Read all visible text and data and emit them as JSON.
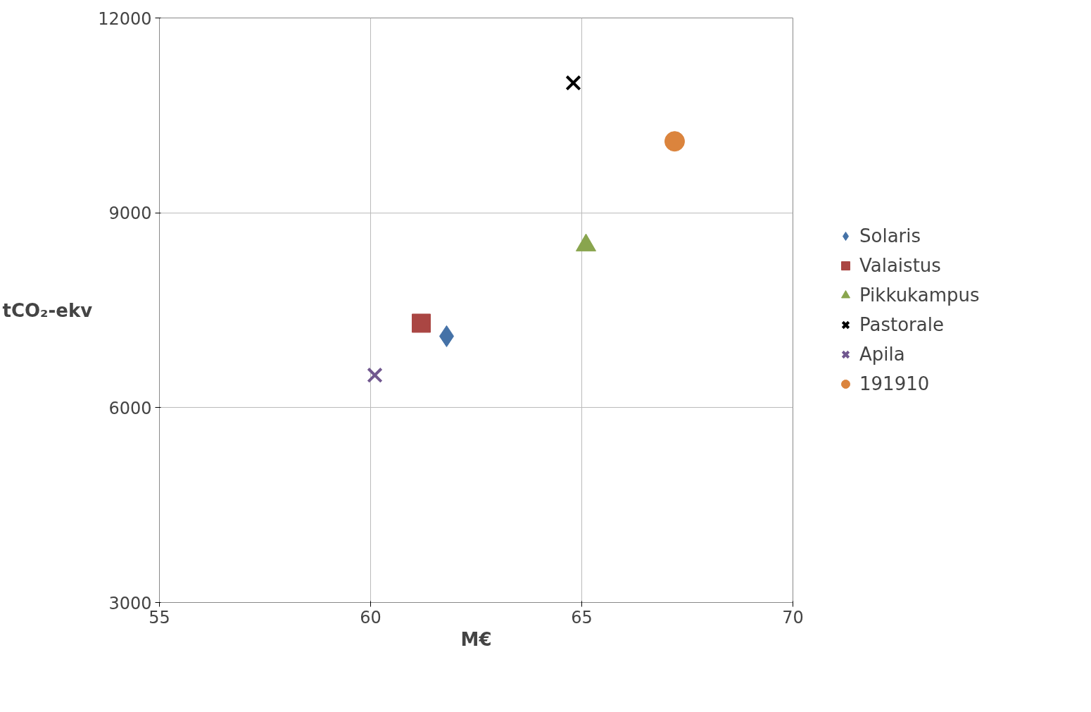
{
  "chart_data": {
    "type": "scatter",
    "xlabel": "M€",
    "ylabel": "tCO₂-ekv",
    "xlim": [
      55,
      70
    ],
    "xticks": [
      55,
      60,
      65,
      70
    ],
    "ylim": [
      3000,
      12000
    ],
    "yticks": [
      3000,
      6000,
      9000,
      12000
    ],
    "grid": true,
    "legend": "right",
    "series": [
      {
        "name": "Solaris",
        "color": "#4572a7",
        "marker": "diamond",
        "x": [
          61.8
        ],
        "values": [
          7100
        ]
      },
      {
        "name": "Valaistus",
        "color": "#aa4643",
        "marker": "square",
        "x": [
          61.2
        ],
        "values": [
          7300
        ]
      },
      {
        "name": "Pikkukampus",
        "color": "#89a54e",
        "marker": "triangle",
        "x": [
          65.1
        ],
        "values": [
          8500
        ]
      },
      {
        "name": "Pastorale",
        "color": "#000000",
        "marker": "cross",
        "x": [
          64.8
        ],
        "values": [
          11000
        ]
      },
      {
        "name": "Apila",
        "color": "#71588f",
        "marker": "cross",
        "x": [
          60.1
        ],
        "values": [
          6500
        ]
      },
      {
        "name": "191910",
        "color": "#db843d",
        "marker": "circle",
        "x": [
          67.2
        ],
        "values": [
          10100
        ]
      }
    ]
  }
}
